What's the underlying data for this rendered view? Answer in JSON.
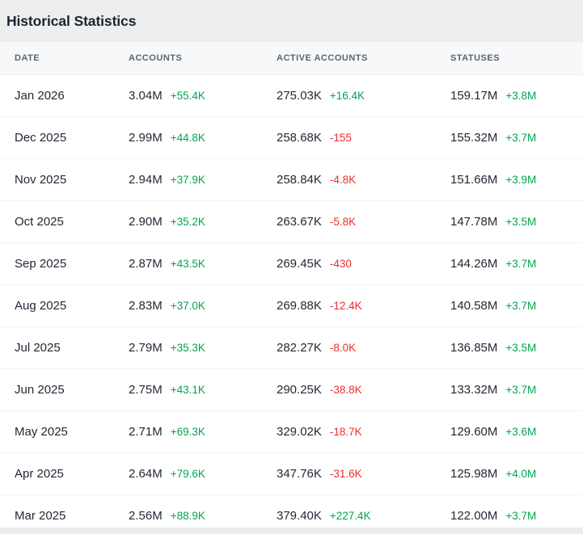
{
  "title": "Historical Statistics",
  "colors": {
    "positive": "#00A550",
    "negative": "#EC2D2D"
  },
  "table": {
    "columns": [
      "Date",
      "Accounts",
      "Active Accounts",
      "Statuses"
    ],
    "rows": [
      {
        "date": "Jan 2026",
        "accounts": {
          "value": "3.04M",
          "delta": "+55.4K"
        },
        "active_accounts": {
          "value": "275.03K",
          "delta": "+16.4K"
        },
        "statuses": {
          "value": "159.17M",
          "delta": "+3.8M"
        }
      },
      {
        "date": "Dec 2025",
        "accounts": {
          "value": "2.99M",
          "delta": "+44.8K"
        },
        "active_accounts": {
          "value": "258.68K",
          "delta": "-155"
        },
        "statuses": {
          "value": "155.32M",
          "delta": "+3.7M"
        }
      },
      {
        "date": "Nov 2025",
        "accounts": {
          "value": "2.94M",
          "delta": "+37.9K"
        },
        "active_accounts": {
          "value": "258.84K",
          "delta": "-4.8K"
        },
        "statuses": {
          "value": "151.66M",
          "delta": "+3.9M"
        }
      },
      {
        "date": "Oct 2025",
        "accounts": {
          "value": "2.90M",
          "delta": "+35.2K"
        },
        "active_accounts": {
          "value": "263.67K",
          "delta": "-5.8K"
        },
        "statuses": {
          "value": "147.78M",
          "delta": "+3.5M"
        }
      },
      {
        "date": "Sep 2025",
        "accounts": {
          "value": "2.87M",
          "delta": "+43.5K"
        },
        "active_accounts": {
          "value": "269.45K",
          "delta": "-430"
        },
        "statuses": {
          "value": "144.26M",
          "delta": "+3.7M"
        }
      },
      {
        "date": "Aug 2025",
        "accounts": {
          "value": "2.83M",
          "delta": "+37.0K"
        },
        "active_accounts": {
          "value": "269.88K",
          "delta": "-12.4K"
        },
        "statuses": {
          "value": "140.58M",
          "delta": "+3.7M"
        }
      },
      {
        "date": "Jul 2025",
        "accounts": {
          "value": "2.79M",
          "delta": "+35.3K"
        },
        "active_accounts": {
          "value": "282.27K",
          "delta": "-8.0K"
        },
        "statuses": {
          "value": "136.85M",
          "delta": "+3.5M"
        }
      },
      {
        "date": "Jun 2025",
        "accounts": {
          "value": "2.75M",
          "delta": "+43.1K"
        },
        "active_accounts": {
          "value": "290.25K",
          "delta": "-38.8K"
        },
        "statuses": {
          "value": "133.32M",
          "delta": "+3.7M"
        }
      },
      {
        "date": "May 2025",
        "accounts": {
          "value": "2.71M",
          "delta": "+69.3K"
        },
        "active_accounts": {
          "value": "329.02K",
          "delta": "-18.7K"
        },
        "statuses": {
          "value": "129.60M",
          "delta": "+3.6M"
        }
      },
      {
        "date": "Apr 2025",
        "accounts": {
          "value": "2.64M",
          "delta": "+79.6K"
        },
        "active_accounts": {
          "value": "347.76K",
          "delta": "-31.6K"
        },
        "statuses": {
          "value": "125.98M",
          "delta": "+4.0M"
        }
      },
      {
        "date": "Mar 2025",
        "accounts": {
          "value": "2.56M",
          "delta": "+88.9K"
        },
        "active_accounts": {
          "value": "379.40K",
          "delta": "+227.4K"
        },
        "statuses": {
          "value": "122.00M",
          "delta": "+3.7M"
        }
      }
    ]
  }
}
